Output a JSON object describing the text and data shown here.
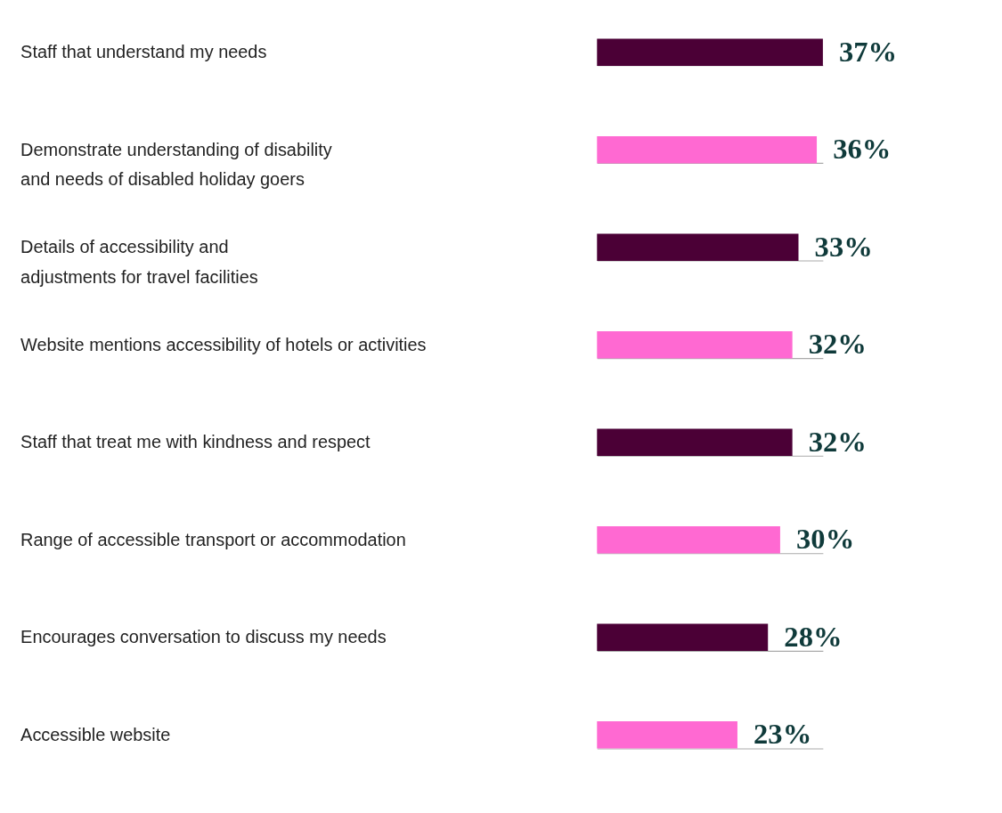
{
  "chart_data": {
    "type": "bar",
    "orientation": "horizontal",
    "categories": [
      "Staff that understand my needs",
      "Demonstrate understanding of disability\nand needs of disabled holiday goers",
      "Details of accessibility and\nadjustments for travel facilities",
      "Website mentions accessibility of hotels or activities",
      "Staff that treat me with kindness and respect",
      "Range of accessible transport or accommodation",
      "Encourages conversation to discuss my needs",
      "Accessible website"
    ],
    "values": [
      37,
      36,
      33,
      32,
      32,
      30,
      28,
      23
    ],
    "colors": [
      "#4b0036",
      "#ff69d2",
      "#4b0036",
      "#ff69d2",
      "#4b0036",
      "#ff69d2",
      "#4b0036",
      "#ff69d2"
    ],
    "value_labels": [
      "37%",
      "36%",
      "33%",
      "32%",
      "32%",
      "30%",
      "28%",
      "23%"
    ],
    "grid": "y"
  }
}
